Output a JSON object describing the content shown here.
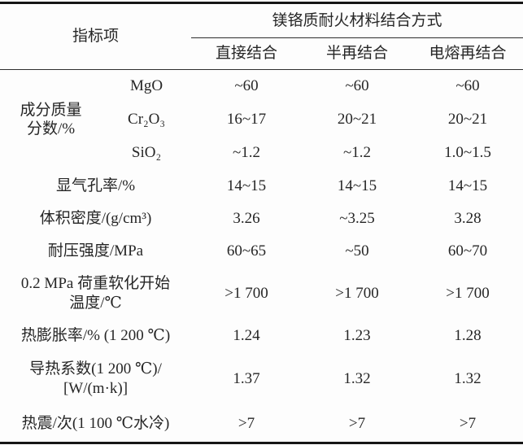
{
  "table": {
    "indicator_header": "指标项",
    "group_header": "镁铬质耐火材料结合方式",
    "bond_types": [
      "直接结合",
      "半再结合",
      "电熔再结合"
    ],
    "composition_group_label": "成分质量\n分数/%",
    "rows": [
      {
        "label": "MgO",
        "values": [
          "~60",
          "~60",
          "~60"
        ]
      },
      {
        "label": "Cr₂O₃",
        "values": [
          "16~17",
          "20~21",
          "20~21"
        ]
      },
      {
        "label": "SiO₂",
        "values": [
          "~1.2",
          "~1.2",
          "1.0~1.5"
        ]
      },
      {
        "label": "显气孔率/%",
        "values": [
          "14~15",
          "14~15",
          "14~15"
        ]
      },
      {
        "label": "体积密度/(g/cm³)",
        "values": [
          "3.26",
          "~3.25",
          "3.28"
        ]
      },
      {
        "label": "耐压强度/MPa",
        "values": [
          "60~65",
          "~50",
          "60~70"
        ]
      },
      {
        "label": "0.2 MPa 荷重软化开始\n温度/℃",
        "values": [
          ">1 700",
          ">1 700",
          ">1 700"
        ]
      },
      {
        "label": "热膨胀率/% (1 200 ℃)",
        "values": [
          "1.24",
          "1.23",
          "1.28"
        ]
      },
      {
        "label": "导热系数(1 200 ℃)/\n[W/(m·k)]",
        "values": [
          "1.37",
          "1.32",
          "1.32"
        ]
      },
      {
        "label": "热震/次(1 100 ℃水冷)",
        "values": [
          ">7",
          ">7",
          ">7"
        ]
      }
    ]
  },
  "colors": {
    "text": "#262626",
    "thick_rule": "#161616",
    "thin_rule": "#2e2e2e",
    "background": "#fdfdfd"
  }
}
